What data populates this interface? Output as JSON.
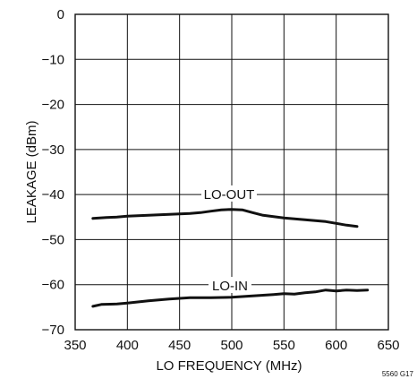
{
  "chart_data": {
    "type": "line",
    "xlabel": "LO FREQUENCY (MHz)",
    "ylabel": "LEAKAGE (dBm)",
    "xlim": [
      350,
      650
    ],
    "ylim": [
      -70,
      0
    ],
    "xticks": [
      350,
      400,
      450,
      500,
      550,
      600,
      650
    ],
    "yticks": [
      0,
      -10,
      -20,
      -30,
      -40,
      -50,
      -60,
      -70
    ],
    "xtick_labels": [
      "350",
      "400",
      "450",
      "500",
      "550",
      "600",
      "650"
    ],
    "ytick_labels": [
      "0",
      "−10",
      "−20",
      "−30",
      "−40",
      "−50",
      "−60",
      "−70"
    ],
    "grid": true,
    "series": [
      {
        "name": "LO-OUT",
        "x": [
          367,
          380,
          390,
          400,
          420,
          440,
          460,
          470,
          480,
          490,
          500,
          510,
          520,
          530,
          550,
          570,
          590,
          610,
          620
        ],
        "y": [
          -45.3,
          -45.1,
          -45.0,
          -44.8,
          -44.6,
          -44.4,
          -44.2,
          -44.0,
          -43.7,
          -43.4,
          -43.3,
          -43.4,
          -44.0,
          -44.6,
          -45.2,
          -45.6,
          -46.0,
          -46.8,
          -47.1
        ]
      },
      {
        "name": "LO-IN",
        "x": [
          367,
          375,
          390,
          400,
          420,
          440,
          460,
          480,
          500,
          520,
          540,
          550,
          560,
          570,
          580,
          590,
          600,
          610,
          620,
          630
        ],
        "y": [
          -64.8,
          -64.4,
          -64.3,
          -64.1,
          -63.6,
          -63.2,
          -62.9,
          -62.9,
          -62.8,
          -62.5,
          -62.2,
          -62.0,
          -62.1,
          -61.8,
          -61.6,
          -61.2,
          -61.4,
          -61.2,
          -61.3,
          -61.2
        ]
      }
    ],
    "fig_code": "5560 G17"
  },
  "colors": {
    "line": "#111111",
    "grid": "#111111",
    "background": "#ffffff"
  }
}
